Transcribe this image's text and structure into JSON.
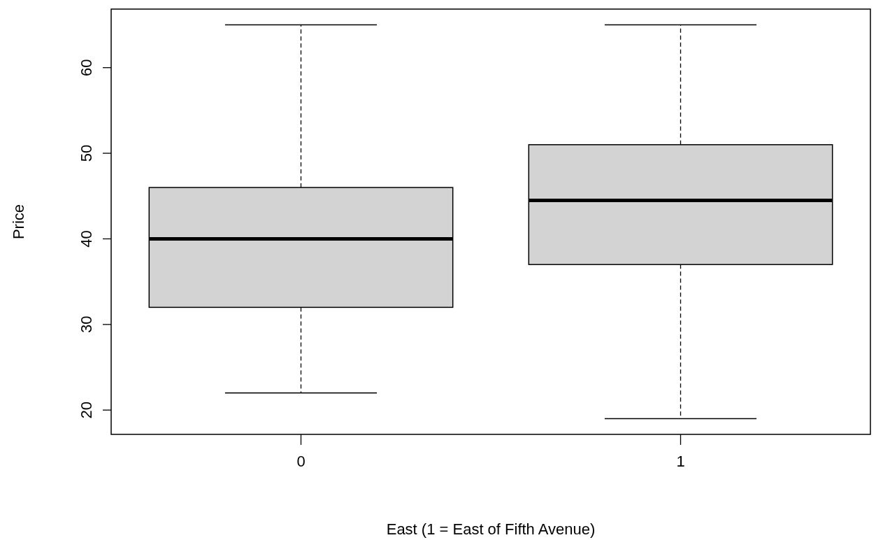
{
  "chart_data": {
    "type": "box",
    "xlabel": "East (1 = East of Fifth Avenue)",
    "ylabel": "Price",
    "categories": [
      "0",
      "1"
    ],
    "color": "#d3d3d3",
    "ylim": [
      17.16,
      66.84
    ],
    "yticks": [
      20,
      30,
      40,
      50,
      60
    ],
    "line_style": "dashed",
    "boxes": [
      {
        "low": 22,
        "q1": 32,
        "median": 40,
        "q3": 46,
        "high": 65
      },
      {
        "low": 19,
        "q1": 37,
        "median": 44.5,
        "q3": 51,
        "high": 65
      }
    ]
  }
}
